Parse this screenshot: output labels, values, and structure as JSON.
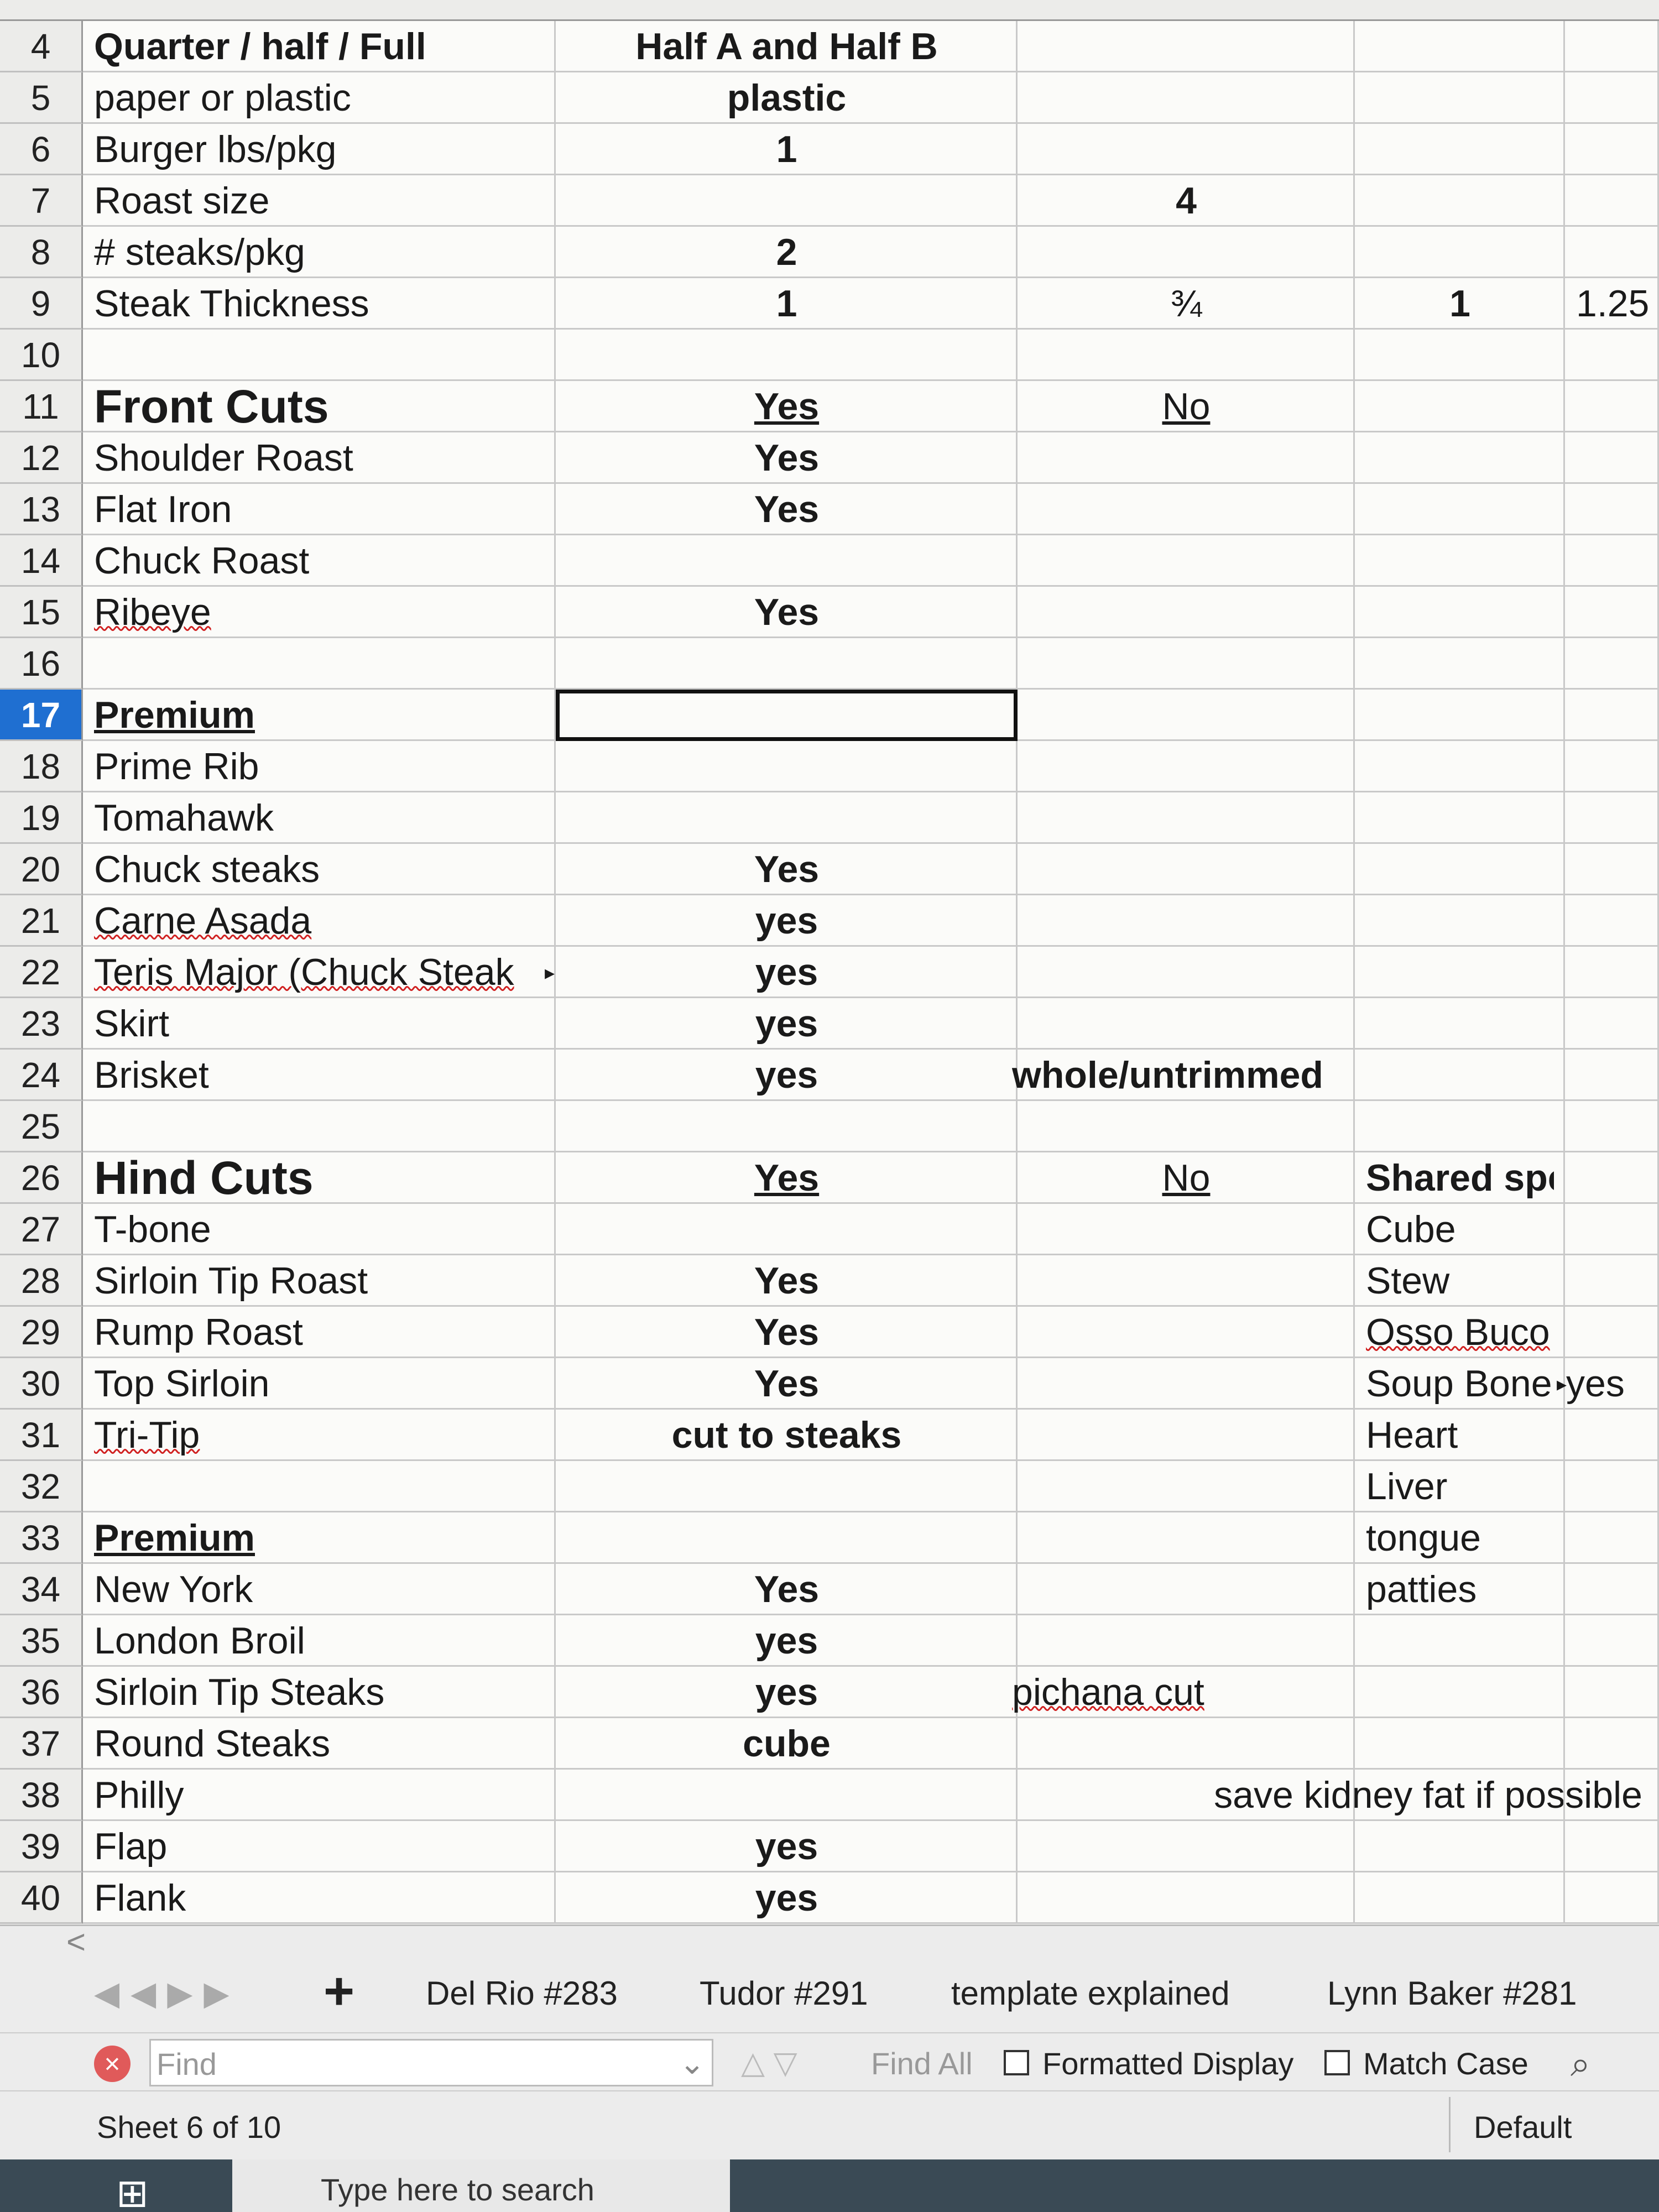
{
  "rows": [
    {
      "n": 4,
      "a": "Quarter / half / Full",
      "b": "Half A and Half B"
    },
    {
      "n": 5,
      "a": "paper or plastic",
      "b": "plastic"
    },
    {
      "n": 6,
      "a": "Burger lbs/pkg",
      "b": 1
    },
    {
      "n": 7,
      "a": "Roast size",
      "c": 4
    },
    {
      "n": 8,
      "a": "# steaks/pkg",
      "b": 2
    },
    {
      "n": 9,
      "a": "Steak Thickness",
      "b": 1,
      "c": "¾",
      "d": 1,
      "e": 1.25
    },
    {
      "n": 10
    },
    {
      "n": 11,
      "a": "Front Cuts",
      "b": "Yes",
      "c": "No"
    },
    {
      "n": 12,
      "a": "Shoulder Roast",
      "b": "Yes"
    },
    {
      "n": 13,
      "a": "Flat Iron",
      "b": "Yes"
    },
    {
      "n": 14,
      "a": "Chuck Roast"
    },
    {
      "n": 15,
      "a": "Ribeye",
      "b": "Yes"
    },
    {
      "n": 16
    },
    {
      "n": 17,
      "a": "Premium"
    },
    {
      "n": 18,
      "a": "Prime Rib"
    },
    {
      "n": 19,
      "a": "Tomahawk"
    },
    {
      "n": 20,
      "a": "Chuck steaks",
      "b": "Yes"
    },
    {
      "n": 21,
      "a": "Carne Asada",
      "b": "yes"
    },
    {
      "n": 22,
      "a": "Teris Major (Chuck Steak",
      "b": "yes"
    },
    {
      "n": 23,
      "a": "Skirt",
      "b": "yes"
    },
    {
      "n": 24,
      "a": "Brisket",
      "b": "yes",
      "c": "whole/untrimmed"
    },
    {
      "n": 25
    },
    {
      "n": 26,
      "a": "Hind Cuts",
      "b": "Yes",
      "c": "No",
      "d": "Shared spec"
    },
    {
      "n": 27,
      "a": "T-bone",
      "d": "Cube"
    },
    {
      "n": 28,
      "a": "Sirloin Tip Roast",
      "b": "Yes",
      "d": "Stew"
    },
    {
      "n": 29,
      "a": "Rump Roast",
      "b": "Yes",
      "d": "Osso Buco"
    },
    {
      "n": 30,
      "a": "Top Sirloin",
      "b": "Yes",
      "d": "Soup Bone",
      "e": "yes"
    },
    {
      "n": 31,
      "a": "Tri-Tip",
      "b": "cut to steaks",
      "d": "Heart"
    },
    {
      "n": 32,
      "d": "Liver"
    },
    {
      "n": 33,
      "a": "Premium",
      "d": "tongue"
    },
    {
      "n": 34,
      "a": "New York",
      "b": "Yes",
      "d": "patties"
    },
    {
      "n": 35,
      "a": "London Broil",
      "b": "yes"
    },
    {
      "n": 36,
      "a": "Sirloin Tip Steaks",
      "b": "yes",
      "c": "pichana cut"
    },
    {
      "n": 37,
      "a": "Round Steaks",
      "b": "cube"
    },
    {
      "n": 38,
      "a": "Philly",
      "c": "save kidney fat if possible"
    },
    {
      "n": 39,
      "a": "Flap",
      "b": "yes"
    },
    {
      "n": 40,
      "a": "Flank",
      "b": "yes"
    }
  ],
  "sheet_tabs": [
    "Del Rio #283",
    "Tudor #291",
    "template explained",
    "Lynn Baker #281"
  ],
  "find_bar": {
    "placeholder": "Find",
    "find_all": "Find All",
    "formatted_display": "Formatted Display",
    "match_case": "Match Case"
  },
  "status_bar": {
    "sheet": "Sheet 6 of 10",
    "style": "Default"
  },
  "taskbar": {
    "search": "Type here to search"
  }
}
